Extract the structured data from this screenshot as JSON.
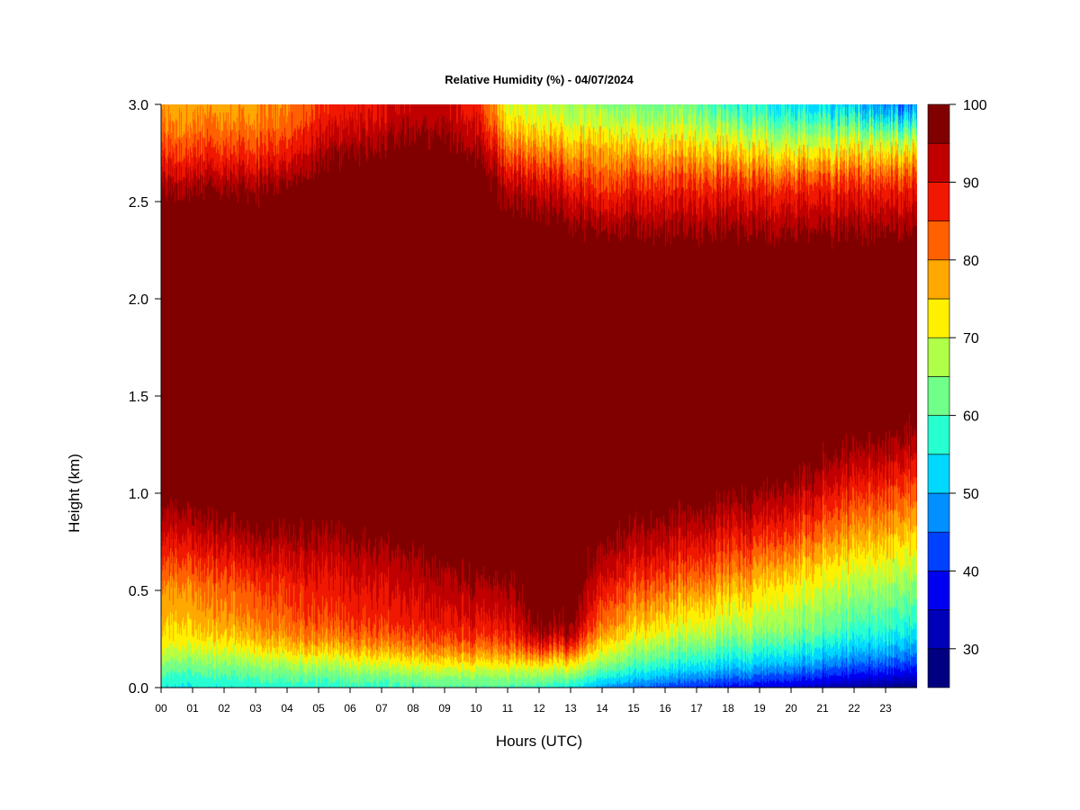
{
  "chart_data": {
    "type": "heatmap",
    "title": "Relative Humidity (%) - 04/07/2024",
    "xlabel": "Hours (UTC)",
    "ylabel": "Height (km)",
    "xlim": [
      0,
      24
    ],
    "ylim": [
      0,
      3
    ],
    "x_ticks": [
      {
        "value": 0,
        "label": "00"
      },
      {
        "value": 1,
        "label": "01"
      },
      {
        "value": 2,
        "label": "02"
      },
      {
        "value": 3,
        "label": "03"
      },
      {
        "value": 4,
        "label": "04"
      },
      {
        "value": 5,
        "label": "05"
      },
      {
        "value": 6,
        "label": "06"
      },
      {
        "value": 7,
        "label": "07"
      },
      {
        "value": 8,
        "label": "08"
      },
      {
        "value": 9,
        "label": "09"
      },
      {
        "value": 10,
        "label": "10"
      },
      {
        "value": 11,
        "label": "11"
      },
      {
        "value": 12,
        "label": "12"
      },
      {
        "value": 13,
        "label": "13"
      },
      {
        "value": 14,
        "label": "14"
      },
      {
        "value": 15,
        "label": "15"
      },
      {
        "value": 16,
        "label": "16"
      },
      {
        "value": 17,
        "label": "17"
      },
      {
        "value": 18,
        "label": "18"
      },
      {
        "value": 19,
        "label": "19"
      },
      {
        "value": 20,
        "label": "20"
      },
      {
        "value": 21,
        "label": "21"
      },
      {
        "value": 22,
        "label": "22"
      },
      {
        "value": 23,
        "label": "23"
      }
    ],
    "y_ticks": [
      {
        "value": 0,
        "label": "0.0"
      },
      {
        "value": 0.5,
        "label": "0.5"
      },
      {
        "value": 1,
        "label": "1.0"
      },
      {
        "value": 1.5,
        "label": "1.5"
      },
      {
        "value": 2,
        "label": "2.0"
      },
      {
        "value": 2.5,
        "label": "2.5"
      },
      {
        "value": 3,
        "label": "3.0"
      }
    ],
    "colorbar": {
      "range": [
        25,
        100
      ],
      "levels": [
        25,
        30,
        35,
        40,
        45,
        50,
        55,
        60,
        65,
        70,
        75,
        80,
        85,
        90,
        95,
        100
      ],
      "colors": [
        "#000080",
        "#0000b8",
        "#0000f0",
        "#0040ff",
        "#0090ff",
        "#00d8ff",
        "#28ffd0",
        "#70ff88",
        "#b0ff48",
        "#fff000",
        "#ffa800",
        "#ff6000",
        "#f01800",
        "#c00000",
        "#800000"
      ],
      "tick_labels": [
        {
          "value": 30,
          "label": "30"
        },
        {
          "value": 40,
          "label": "40"
        },
        {
          "value": 50,
          "label": "50"
        },
        {
          "value": 60,
          "label": "60"
        },
        {
          "value": 70,
          "label": "70"
        },
        {
          "value": 80,
          "label": "80"
        },
        {
          "value": 90,
          "label": "90"
        },
        {
          "value": 100,
          "label": "100"
        }
      ]
    },
    "profile_nodes_km": [
      0,
      0.05,
      0.1,
      0.15,
      0.2,
      0.25,
      0.3,
      0.4,
      0.5,
      0.6,
      0.7,
      0.8,
      0.9,
      1.0,
      1.1,
      1.2,
      1.3,
      1.5,
      2.0,
      2.2,
      2.3,
      2.4,
      2.5,
      2.6,
      2.7,
      2.8,
      2.9,
      3.0
    ],
    "hourly_profiles_rh": [
      {
        "hour": 0,
        "rh": [
          55,
          58,
          62,
          66,
          70,
          72,
          74,
          76,
          78,
          82,
          86,
          90,
          94,
          97,
          99,
          100,
          100,
          100,
          100,
          100,
          100,
          100,
          98,
          94,
          88,
          84,
          80,
          78
        ]
      },
      {
        "hour": 1,
        "rh": [
          55,
          58,
          62,
          66,
          70,
          73,
          75,
          78,
          80,
          84,
          88,
          92,
          96,
          99,
          100,
          100,
          100,
          100,
          100,
          100,
          100,
          100,
          98,
          94,
          88,
          84,
          80,
          78
        ]
      },
      {
        "hour": 2,
        "rh": [
          56,
          59,
          63,
          67,
          71,
          74,
          77,
          80,
          82,
          86,
          90,
          94,
          98,
          100,
          100,
          100,
          100,
          100,
          100,
          100,
          100,
          100,
          98,
          94,
          88,
          84,
          80,
          78
        ]
      },
      {
        "hour": 3,
        "rh": [
          56,
          60,
          64,
          68,
          73,
          76,
          79,
          82,
          84,
          88,
          92,
          96,
          99,
          100,
          100,
          100,
          100,
          100,
          100,
          100,
          100,
          100,
          98,
          94,
          88,
          84,
          80,
          78
        ]
      },
      {
        "hour": 4,
        "rh": [
          57,
          61,
          65,
          70,
          75,
          78,
          81,
          84,
          86,
          89,
          92,
          96,
          99,
          100,
          100,
          100,
          100,
          100,
          100,
          100,
          100,
          100,
          99,
          96,
          90,
          86,
          82,
          80
        ]
      },
      {
        "hour": 5,
        "rh": [
          57,
          61,
          66,
          71,
          76,
          80,
          83,
          86,
          88,
          90,
          93,
          96,
          99,
          100,
          100,
          100,
          100,
          100,
          100,
          100,
          100,
          100,
          100,
          99,
          96,
          92,
          88,
          86
        ]
      },
      {
        "hour": 6,
        "rh": [
          58,
          62,
          67,
          72,
          77,
          81,
          84,
          87,
          89,
          91,
          94,
          97,
          99,
          100,
          100,
          100,
          100,
          100,
          100,
          100,
          100,
          100,
          100,
          100,
          98,
          94,
          90,
          88
        ]
      },
      {
        "hour": 7,
        "rh": [
          58,
          62,
          68,
          73,
          78,
          82,
          85,
          88,
          90,
          92,
          95,
          98,
          100,
          100,
          100,
          100,
          100,
          100,
          100,
          100,
          100,
          100,
          100,
          100,
          99,
          96,
          92,
          90
        ]
      },
      {
        "hour": 8,
        "rh": [
          59,
          63,
          69,
          74,
          79,
          83,
          86,
          89,
          91,
          93,
          96,
          99,
          100,
          100,
          100,
          100,
          100,
          100,
          100,
          100,
          100,
          100,
          100,
          100,
          100,
          98,
          94,
          92
        ]
      },
      {
        "hour": 9,
        "rh": [
          60,
          64,
          70,
          75,
          80,
          84,
          87,
          90,
          92,
          95,
          98,
          100,
          100,
          100,
          100,
          100,
          100,
          100,
          100,
          100,
          100,
          100,
          100,
          100,
          100,
          98,
          94,
          92
        ]
      },
      {
        "hour": 10,
        "rh": [
          60,
          64,
          70,
          76,
          81,
          85,
          88,
          91,
          94,
          97,
          100,
          100,
          100,
          100,
          100,
          100,
          100,
          100,
          100,
          100,
          100,
          100,
          100,
          100,
          98,
          94,
          90,
          88
        ]
      },
      {
        "hour": 11,
        "rh": [
          60,
          65,
          71,
          77,
          82,
          86,
          89,
          92,
          95,
          98,
          100,
          100,
          100,
          100,
          100,
          100,
          100,
          100,
          100,
          100,
          100,
          99,
          96,
          92,
          86,
          80,
          74,
          70
        ]
      },
      {
        "hour": 12,
        "rh": [
          58,
          64,
          70,
          78,
          86,
          92,
          96,
          99,
          100,
          100,
          100,
          100,
          100,
          100,
          100,
          100,
          100,
          100,
          100,
          100,
          100,
          98,
          94,
          90,
          84,
          78,
          72,
          68
        ]
      },
      {
        "hour": 13,
        "rh": [
          55,
          62,
          70,
          76,
          84,
          90,
          95,
          98,
          100,
          100,
          100,
          100,
          100,
          100,
          100,
          100,
          100,
          100,
          100,
          100,
          99,
          96,
          92,
          88,
          82,
          76,
          70,
          66
        ]
      },
      {
        "hour": 14,
        "rh": [
          48,
          55,
          62,
          68,
          72,
          76,
          80,
          84,
          88,
          92,
          95,
          98,
          100,
          100,
          100,
          100,
          100,
          100,
          100,
          100,
          98,
          94,
          88,
          84,
          80,
          76,
          70,
          65
        ]
      },
      {
        "hour": 15,
        "rh": [
          45,
          52,
          58,
          63,
          67,
          71,
          75,
          79,
          84,
          88,
          92,
          95,
          98,
          100,
          100,
          100,
          100,
          100,
          100,
          100,
          98,
          94,
          90,
          86,
          80,
          74,
          68,
          62
        ]
      },
      {
        "hour": 16,
        "rh": [
          42,
          49,
          55,
          60,
          64,
          68,
          72,
          76,
          81,
          86,
          90,
          94,
          97,
          99,
          100,
          100,
          100,
          100,
          100,
          100,
          98,
          94,
          90,
          86,
          80,
          74,
          68,
          62
        ]
      },
      {
        "hour": 17,
        "rh": [
          40,
          47,
          53,
          58,
          62,
          66,
          70,
          74,
          79,
          84,
          88,
          92,
          96,
          99,
          100,
          100,
          100,
          100,
          100,
          100,
          98,
          94,
          90,
          86,
          80,
          74,
          68,
          62
        ]
      },
      {
        "hour": 18,
        "rh": [
          38,
          45,
          51,
          56,
          60,
          64,
          68,
          72,
          77,
          82,
          86,
          90,
          94,
          98,
          100,
          100,
          100,
          100,
          100,
          100,
          98,
          94,
          90,
          86,
          78,
          72,
          64,
          56
        ]
      },
      {
        "hour": 19,
        "rh": [
          36,
          43,
          49,
          54,
          58,
          62,
          66,
          70,
          74,
          78,
          83,
          88,
          92,
          96,
          99,
          100,
          100,
          100,
          100,
          100,
          98,
          94,
          90,
          86,
          78,
          72,
          64,
          56
        ]
      },
      {
        "hour": 20,
        "rh": [
          34,
          41,
          47,
          52,
          56,
          60,
          64,
          67,
          71,
          75,
          80,
          85,
          89,
          93,
          97,
          99,
          100,
          100,
          100,
          100,
          98,
          94,
          90,
          86,
          78,
          70,
          62,
          54
        ]
      },
      {
        "hour": 21,
        "rh": [
          32,
          39,
          45,
          50,
          54,
          58,
          62,
          65,
          69,
          73,
          77,
          82,
          86,
          90,
          94,
          97,
          99,
          100,
          100,
          100,
          98,
          94,
          90,
          86,
          78,
          70,
          62,
          52
        ]
      },
      {
        "hour": 22,
        "rh": [
          30,
          37,
          43,
          48,
          52,
          56,
          59,
          63,
          67,
          71,
          75,
          79,
          83,
          87,
          91,
          95,
          98,
          100,
          100,
          100,
          98,
          94,
          90,
          86,
          78,
          70,
          60,
          50
        ]
      },
      {
        "hour": 23,
        "rh": [
          28,
          35,
          41,
          46,
          50,
          54,
          57,
          61,
          65,
          69,
          73,
          77,
          81,
          85,
          89,
          93,
          97,
          99,
          100,
          100,
          98,
          94,
          90,
          86,
          78,
          70,
          58,
          46
        ]
      },
      {
        "hour": 24,
        "rh": [
          27,
          34,
          40,
          45,
          49,
          53,
          56,
          60,
          64,
          68,
          72,
          76,
          80,
          84,
          88,
          92,
          96,
          99,
          100,
          100,
          98,
          94,
          90,
          86,
          78,
          70,
          56,
          44
        ]
      }
    ]
  }
}
